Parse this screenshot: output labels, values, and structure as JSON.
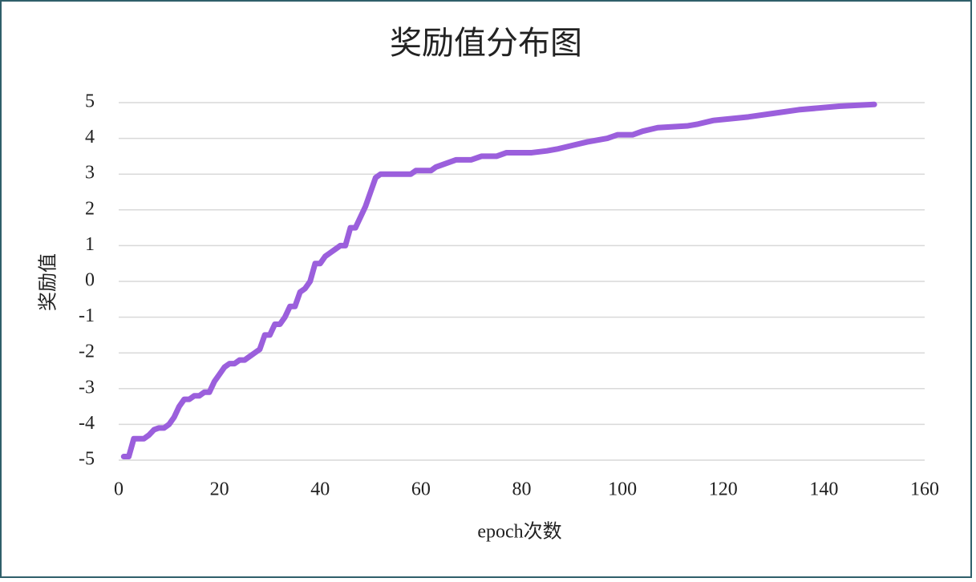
{
  "chart_data": {
    "type": "line",
    "title": "奖励值分布图",
    "x_label": "epoch次数",
    "y_label": "奖励值",
    "x": [
      1,
      2,
      3,
      4,
      5,
      6,
      7,
      8,
      9,
      10,
      11,
      12,
      13,
      14,
      15,
      16,
      17,
      18,
      19,
      20,
      21,
      22,
      23,
      24,
      25,
      26,
      27,
      28,
      29,
      30,
      31,
      32,
      33,
      34,
      35,
      36,
      37,
      38,
      39,
      40,
      41,
      42,
      43,
      44,
      45,
      46,
      47,
      48,
      49,
      50,
      51,
      52,
      58,
      59,
      62,
      63,
      65,
      67,
      70,
      72,
      75,
      77,
      82,
      85,
      87,
      90,
      93,
      97,
      99,
      102,
      104,
      107,
      113,
      115,
      118,
      125,
      130,
      135,
      143,
      150
    ],
    "series": [
      {
        "name": "奖励值",
        "color": "#9b5fdc",
        "values": [
          -4.9,
          -4.9,
          -4.4,
          -4.4,
          -4.4,
          -4.3,
          -4.15,
          -4.1,
          -4.1,
          -4.0,
          -3.8,
          -3.5,
          -3.3,
          -3.3,
          -3.2,
          -3.2,
          -3.1,
          -3.1,
          -2.8,
          -2.6,
          -2.4,
          -2.3,
          -2.3,
          -2.2,
          -2.2,
          -2.1,
          -2.0,
          -1.9,
          -1.5,
          -1.5,
          -1.2,
          -1.2,
          -1.0,
          -0.7,
          -0.7,
          -0.3,
          -0.2,
          0.0,
          0.5,
          0.5,
          0.7,
          0.8,
          0.9,
          1.0,
          1.0,
          1.5,
          1.5,
          1.8,
          2.1,
          2.5,
          2.9,
          3.0,
          3.0,
          3.1,
          3.1,
          3.2,
          3.3,
          3.4,
          3.4,
          3.5,
          3.5,
          3.6,
          3.6,
          3.65,
          3.7,
          3.8,
          3.9,
          4.0,
          4.1,
          4.1,
          4.2,
          4.3,
          4.35,
          4.4,
          4.5,
          4.6,
          4.7,
          4.8,
          4.9,
          4.95
        ]
      }
    ],
    "xlim": [
      0,
      160
    ],
    "ylim": [
      -5,
      5
    ],
    "xticks": [
      0,
      20,
      40,
      60,
      80,
      100,
      120,
      140,
      160
    ],
    "yticks": [
      -5,
      -4,
      -3,
      -2,
      -1,
      0,
      1,
      2,
      3,
      4,
      5
    ],
    "grid": true
  }
}
